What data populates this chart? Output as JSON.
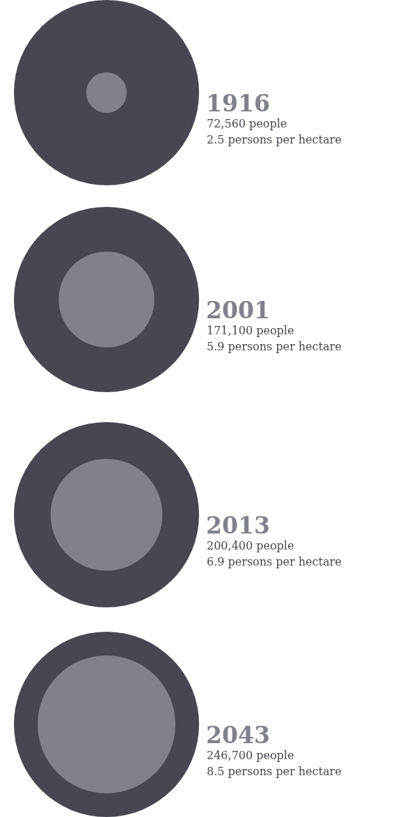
{
  "chart_data": {
    "type": "other",
    "categories": [
      "1916",
      "2001",
      "2013",
      "2043"
    ],
    "series": [
      {
        "color": "#464750",
        "values": [
          72560,
          171100,
          200400,
          246700
        ],
        "value_labels": [
          "72,560 people",
          "171,100 people",
          "200,400 people",
          "246,700 people"
        ]
      },
      {
        "color": "#7f828b",
        "values": [
          2.5,
          5.9,
          6.9,
          8.5
        ],
        "value_labels": [
          "2.5 persons per hectare",
          "5.9 persons per hectare",
          "6.9 persons per hectare",
          "8.5 persons per hectare"
        ]
      }
    ]
  }
}
